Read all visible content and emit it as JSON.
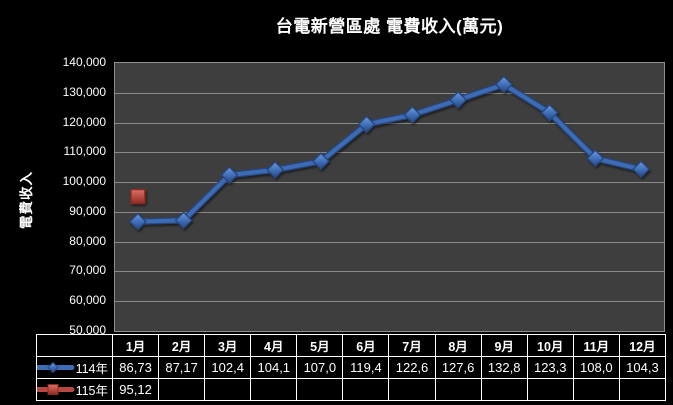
{
  "title": "台電新營區處 電費收入(萬元)",
  "y_axis": {
    "title": "電費收入",
    "tick_labels": [
      "140,000",
      "130,000",
      "120,000",
      "110,000",
      "100,000",
      "90,000",
      "80,000",
      "70,000",
      "60,000",
      "50,000"
    ]
  },
  "x_axis": {
    "months": [
      "1月",
      "2月",
      "3月",
      "4月",
      "5月",
      "6月",
      "7月",
      "8月",
      "9月",
      "10月",
      "11月",
      "12月"
    ]
  },
  "colors": {
    "page_background": "#000000",
    "plot_background": "#3E3E3E",
    "gridline": "#8A8A8A",
    "series_114": "#3E6CB5",
    "series_114_light": "#6E9ADF",
    "series_114_dark": "#27477E",
    "series_115": "#B5493F",
    "series_115_light": "#DA7166",
    "series_115_dark": "#8A2C24",
    "table_border": "#FFFFFF",
    "text": "#FFFFFF"
  },
  "chart_data": {
    "type": "line",
    "title": "台電新營區處 電費收入(萬元)",
    "xlabel": "",
    "ylabel": "電費收入",
    "ylim": [
      50000,
      140000
    ],
    "ytick_step": 10000,
    "grid": true,
    "legend_position": "table-left",
    "categories": [
      "1月",
      "2月",
      "3月",
      "4月",
      "5月",
      "6月",
      "7月",
      "8月",
      "9月",
      "10月",
      "11月",
      "12月"
    ],
    "series": [
      {
        "name": "114年",
        "marker": "diamond",
        "color": "#3E6CB5",
        "values": [
          86730,
          87170,
          102400,
          104100,
          107000,
          119400,
          122600,
          127600,
          132800,
          123300,
          108000,
          104300
        ],
        "display_values": [
          "86,73",
          "87,17",
          "102,4",
          "104,1",
          "107,0",
          "119,4",
          "122,6",
          "127,6",
          "132,8",
          "123,3",
          "108,0",
          "104,3"
        ]
      },
      {
        "name": "115年",
        "marker": "square",
        "color": "#B5493F",
        "values": [
          95120
        ],
        "display_values": [
          "95,12"
        ]
      }
    ]
  }
}
